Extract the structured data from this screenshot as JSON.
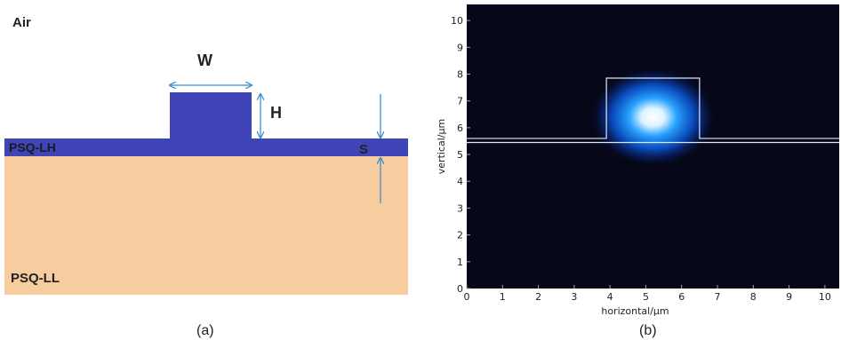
{
  "panel_a": {
    "air_label": "Air",
    "upper_cladding_label": "PSQ-LH",
    "lower_cladding_label": "PSQ-LL",
    "width_label": "W",
    "height_label": "H",
    "slab_label": "S",
    "caption": "(a)",
    "colors": {
      "core": "#3f45b6",
      "substrate": "#f7cc9f",
      "arrow": "#3d8fd0"
    }
  },
  "panel_b": {
    "caption": "(b)",
    "chart_data": {
      "type": "heatmap",
      "xlabel": "horizontal/μm",
      "ylabel": "vertical/μm",
      "xlim": [
        0,
        10.4
      ],
      "ylim": [
        0,
        10.6
      ],
      "x_ticks": [
        "0",
        "1",
        "2",
        "3",
        "4",
        "5",
        "6",
        "7",
        "8",
        "9",
        "10"
      ],
      "y_ticks": [
        "0",
        "1",
        "2",
        "3",
        "4",
        "5",
        "6",
        "7",
        "8",
        "9",
        "10"
      ],
      "waveguide_outline": {
        "slab_top": 5.6,
        "slab_bottom": 5.45,
        "rib_left": 3.9,
        "rib_right": 6.5,
        "rib_top": 7.85
      },
      "mode_peak": {
        "x": 5.2,
        "y": 6.4
      },
      "colors": {
        "background": "#06081a",
        "mode_core": "#ffffff",
        "mode_mid": "#2aa4ff",
        "mode_edge": "#0a2a8a",
        "outline": "#d8e8ff"
      }
    }
  }
}
